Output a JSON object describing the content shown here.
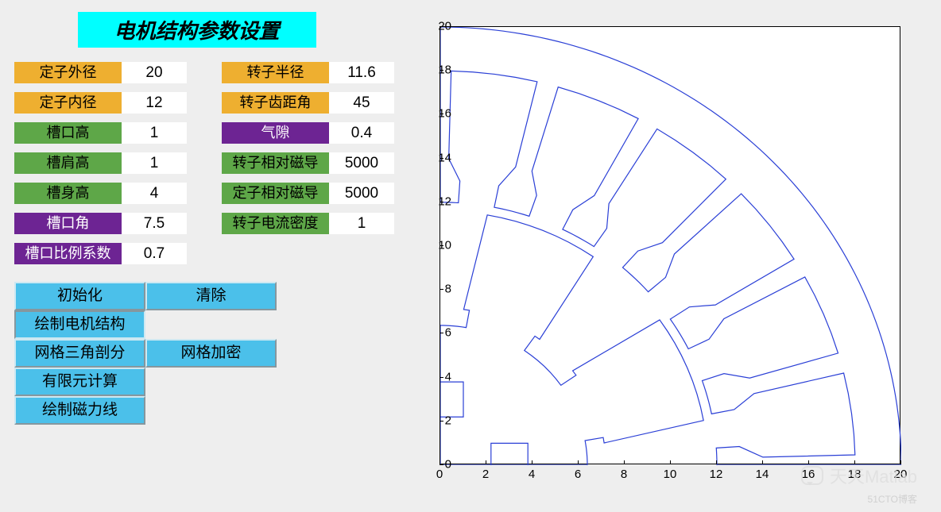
{
  "title": "电机结构参数设置",
  "params_left": [
    {
      "label": "定子外径",
      "value": "20",
      "color": "c-orange"
    },
    {
      "label": "定子内径",
      "value": "12",
      "color": "c-orange"
    },
    {
      "label": "槽口高",
      "value": "1",
      "color": "c-green"
    },
    {
      "label": "槽肩高",
      "value": "1",
      "color": "c-green"
    },
    {
      "label": "槽身高",
      "value": "4",
      "color": "c-green"
    },
    {
      "label": "槽口角",
      "value": "7.5",
      "color": "c-purple"
    },
    {
      "label": "槽口比例系数",
      "value": "0.7",
      "color": "c-purple"
    }
  ],
  "params_right": [
    {
      "label": "转子半径",
      "value": "11.6",
      "color": "c-orange"
    },
    {
      "label": "转子齿距角",
      "value": "45",
      "color": "c-orange"
    },
    {
      "label": "气隙",
      "value": "0.4",
      "color": "c-purple"
    },
    {
      "label": "转子相对磁导",
      "value": "5000",
      "color": "c-green"
    },
    {
      "label": "定子相对磁导",
      "value": "5000",
      "color": "c-green"
    },
    {
      "label": "转子电流密度",
      "value": "1",
      "color": "c-green"
    }
  ],
  "buttons": {
    "init": "初始化",
    "clear": "清除",
    "draw_structure": "绘制电机结构",
    "mesh_tri": "网格三角剖分",
    "mesh_refine": "网格加密",
    "fem_calc": "有限元计算",
    "draw_flux": "绘制磁力线"
  },
  "plot": {
    "xlim": [
      0,
      20
    ],
    "ylim": [
      0,
      20
    ],
    "xticks": [
      0,
      2,
      4,
      6,
      8,
      10,
      12,
      14,
      16,
      18,
      20
    ],
    "yticks": [
      0,
      2,
      4,
      6,
      8,
      10,
      12,
      14,
      16,
      18,
      20
    ],
    "line_color": "#2a3fd6",
    "box_bg": "#ffffff",
    "box_border": "#000000",
    "structure": {
      "stator_outer_r": 20,
      "stator_inner_r": 12,
      "slot_mouth_h": 1,
      "slot_shoulder_h": 1,
      "slot_body_h": 4,
      "slot_mouth_angle_deg": 7.5,
      "rotor_r": 11.6,
      "rotor_tooth_pitch_deg": 45,
      "airgap": 0.4,
      "num_stator_slots": 24,
      "num_rotor_poles": 8
    }
  },
  "watermark": {
    "text": "天天Matlab",
    "sub": "51CTO博客"
  },
  "colors": {
    "page_bg": "#eeeeee",
    "title_bg": "#00ffff",
    "orange": "#eeaf30",
    "green": "#5ea748",
    "purple": "#6d2493",
    "button_bg": "#4bc0ea"
  }
}
